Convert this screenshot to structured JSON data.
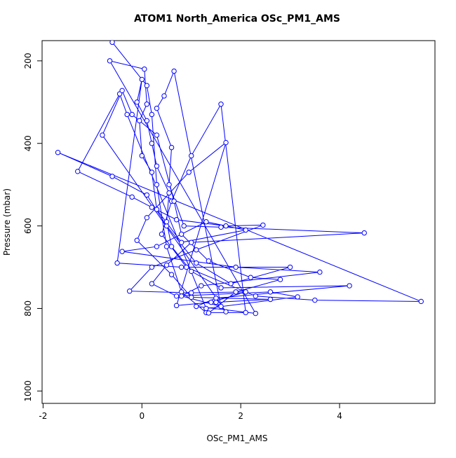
{
  "chart_data": {
    "type": "line",
    "title": "ATOM1 North_America OSc_PM1_AMS",
    "x_label": "OSc_PM1_AMS",
    "y_label": "Pressure (mbar)",
    "color": "#0000ff",
    "xlim": [
      -2.02,
      5.93
    ],
    "xticks": [
      -2,
      0,
      2,
      4
    ],
    "ylim": [
      1030,
      151
    ],
    "yticks": [
      200,
      400,
      600,
      800,
      1000
    ],
    "x": [
      -0.6,
      0.1,
      0.2,
      0.3,
      0.5,
      0.8,
      1.3,
      2.1,
      1.6,
      1.0,
      0.6,
      0.4,
      0.9,
      2.3,
      3.5,
      5.65,
      -1.7,
      -0.6,
      0.1,
      0.5,
      1.1,
      1.8,
      3.0,
      0.8,
      -0.5,
      0.0,
      -0.1,
      0.1,
      0.2,
      0.3,
      0.55,
      0.5,
      0.6,
      1.0,
      1.6,
      4.2,
      1.5,
      1.1,
      2.3,
      -0.65,
      0.05,
      0.1,
      -0.05,
      0.0,
      0.2,
      0.3,
      0.8,
      2.1,
      1.3,
      0.3,
      -0.4,
      1.9,
      3.6,
      1.2,
      0.8,
      1.6,
      0.65,
      0.45,
      0.3,
      0.6,
      0.55,
      0.85,
      1.6,
      4.5,
      1.0,
      0.5,
      0.2,
      0.7,
      2.6,
      3.15,
      1.3,
      -0.3,
      -0.45,
      -1.3,
      -0.2,
      0.2,
      0.7,
      1.7,
      2.45,
      1.1,
      0.2,
      -0.25,
      1.0,
      2.1,
      1.4,
      0.7,
      1.7,
      0.95,
      0.1,
      -0.1,
      0.6,
      1.0,
      2.6,
      1.5,
      1.7,
      -0.8,
      -0.4,
      -0.2,
      0.3,
      0.65,
      0.8,
      1.35,
      2.2,
      2.8,
      1.9,
      1.35
    ],
    "values": [
      155,
      260,
      330,
      500,
      650,
      760,
      810,
      810,
      305,
      430,
      540,
      620,
      700,
      770,
      780,
      783,
      422,
      480,
      525,
      600,
      690,
      740,
      700,
      700,
      690,
      245,
      300,
      345,
      400,
      455,
      520,
      590,
      650,
      710,
      750,
      745,
      775,
      795,
      812,
      200,
      220,
      305,
      345,
      430,
      470,
      560,
      640,
      610,
      590,
      650,
      662,
      700,
      712,
      745,
      770,
      795,
      225,
      285,
      315,
      410,
      500,
      600,
      603,
      617,
      640,
      695,
      740,
      770,
      760,
      772,
      800,
      330,
      280,
      468,
      530,
      555,
      585,
      600,
      598,
      658,
      700,
      758,
      762,
      760,
      785,
      793,
      398,
      470,
      580,
      635,
      718,
      773,
      778,
      785,
      808,
      380,
      272,
      330,
      380,
      540,
      620,
      685,
      725,
      730,
      760,
      811
    ]
  }
}
